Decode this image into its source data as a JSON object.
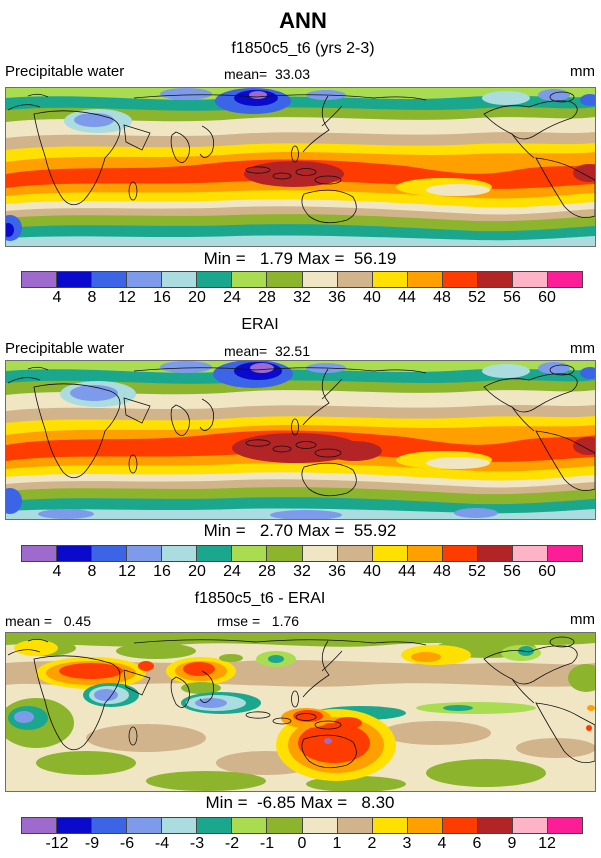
{
  "page": {
    "season_title": "ANN",
    "case_title": "f1850c5_t6 (yrs 2-3)"
  },
  "colorbar": {
    "colors": [
      "#9E6ACD",
      "#0A0ACD",
      "#3C64E6",
      "#7E9BEB",
      "#AADCE0",
      "#1BA78E",
      "#A9DC50",
      "#8CB42C",
      "#F0E6C3",
      "#D2B48C",
      "#FFE000",
      "#FFA000",
      "#FF3C00",
      "#B22426",
      "#FFB3C6",
      "#FB1E96"
    ]
  },
  "panels": [
    {
      "field_label": "Precipitable water",
      "mean_label": "mean=  33.03",
      "units": "mm",
      "minmax": "Min =   1.79 Max =  56.19",
      "ticks": [
        "4",
        "8",
        "12",
        "16",
        "20",
        "24",
        "28",
        "32",
        "36",
        "40",
        "44",
        "48",
        "52",
        "56",
        "60"
      ]
    },
    {
      "title": "ERAI",
      "field_label": "Precipitable water",
      "mean_label": "mean=  32.51",
      "units": "mm",
      "minmax": "Min =   2.70 Max =  55.92",
      "ticks": [
        "4",
        "8",
        "12",
        "16",
        "20",
        "24",
        "28",
        "32",
        "36",
        "40",
        "44",
        "48",
        "52",
        "56",
        "60"
      ]
    },
    {
      "title": "f1850c5_t6 - ERAI",
      "mean_label": "mean =   0.45",
      "rmse_label": "rmse =   1.76",
      "units": "mm",
      "minmax": "Min =  -6.85 Max =   8.30",
      "ticks": [
        "-12",
        "-9",
        "-6",
        "-4",
        "-3",
        "-2",
        "-1",
        "0",
        "1",
        "2",
        "3",
        "4",
        "6",
        "9",
        "12"
      ]
    }
  ],
  "chart_data": [
    {
      "type": "heatmap",
      "panel": "model",
      "season": "ANN",
      "title": "f1850c5_t6 (yrs 2-3)",
      "variable": "Precipitable water",
      "units": "mm",
      "mean": 33.03,
      "min": 1.79,
      "max": 56.19,
      "contour_levels": [
        4,
        8,
        12,
        16,
        20,
        24,
        28,
        32,
        36,
        40,
        44,
        48,
        52,
        56,
        60
      ],
      "palette": [
        "#9E6ACD",
        "#0A0ACD",
        "#3C64E6",
        "#7E9BEB",
        "#AADCE0",
        "#1BA78E",
        "#A9DC50",
        "#8CB42C",
        "#F0E6C3",
        "#D2B48C",
        "#FFE000",
        "#FFA000",
        "#FF3C00",
        "#B22426",
        "#FFB3C6",
        "#FB1E96"
      ],
      "projection": "global lat-lon map, filled contours"
    },
    {
      "type": "heatmap",
      "panel": "observation",
      "title": "ERAI",
      "variable": "Precipitable water",
      "units": "mm",
      "mean": 32.51,
      "min": 2.7,
      "max": 55.92,
      "contour_levels": [
        4,
        8,
        12,
        16,
        20,
        24,
        28,
        32,
        36,
        40,
        44,
        48,
        52,
        56,
        60
      ],
      "palette": [
        "#9E6ACD",
        "#0A0ACD",
        "#3C64E6",
        "#7E9BEB",
        "#AADCE0",
        "#1BA78E",
        "#A9DC50",
        "#8CB42C",
        "#F0E6C3",
        "#D2B48C",
        "#FFE000",
        "#FFA000",
        "#FF3C00",
        "#B22426",
        "#FFB3C6",
        "#FB1E96"
      ],
      "projection": "global lat-lon map, filled contours"
    },
    {
      "type": "heatmap",
      "panel": "difference",
      "title": "f1850c5_t6 - ERAI",
      "variable": "Precipitable water difference",
      "units": "mm",
      "mean": 0.45,
      "rmse": 1.76,
      "min": -6.85,
      "max": 8.3,
      "contour_levels": [
        -12,
        -9,
        -6,
        -4,
        -3,
        -2,
        -1,
        0,
        1,
        2,
        3,
        4,
        6,
        9,
        12
      ],
      "palette": [
        "#9E6ACD",
        "#0A0ACD",
        "#3C64E6",
        "#7E9BEB",
        "#AADCE0",
        "#1BA78E",
        "#A9DC50",
        "#8CB42C",
        "#F0E6C3",
        "#D2B48C",
        "#FFE000",
        "#FFA000",
        "#FF3C00",
        "#B22426",
        "#FFB3C6",
        "#FB1E96"
      ],
      "projection": "global lat-lon map, filled contours"
    }
  ]
}
